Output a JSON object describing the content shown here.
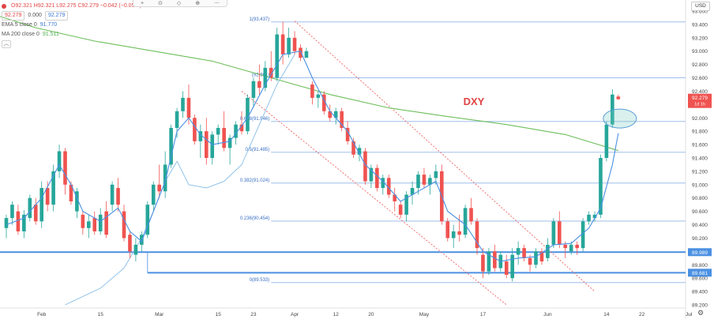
{
  "legend": {
    "ohlc_text": "O92.321  H92.321  L92.275  C92.279  −0.042  (−0.05%)",
    "bid": "92.279",
    "spread": "0.000",
    "ask": "92.279",
    "ema_label": "EMA 5 close 0",
    "ema_value": "91.770",
    "ma_label": "MA 200 close 0",
    "ma_value": "91.511",
    "collapse_symbol": "︿"
  },
  "toolbar": {
    "items": [
      "+",
      "⊙",
      "◇",
      "⊕",
      "⋯"
    ]
  },
  "currency_button": "USD",
  "chart_data": {
    "type": "candlestick",
    "title": "DXY",
    "ylim": [
      89.2,
      93.6
    ],
    "y_ticks": [
      "93.600",
      "93.400",
      "93.200",
      "93.000",
      "92.800",
      "92.600",
      "92.400",
      "92.200",
      "92.000",
      "91.800",
      "91.600",
      "91.400",
      "91.200",
      "91.000",
      "90.800",
      "90.600",
      "90.400",
      "90.200",
      "90.000",
      "89.800",
      "89.600",
      "89.400",
      "89.200"
    ],
    "x_ticks": [
      {
        "label": "Feb",
        "i": 6
      },
      {
        "label": "15",
        "i": 16
      },
      {
        "label": "Mar",
        "i": 26
      },
      {
        "label": "15",
        "i": 36
      },
      {
        "label": "23",
        "i": 42
      },
      {
        "label": "Apr",
        "i": 49
      },
      {
        "label": "12",
        "i": 56
      },
      {
        "label": "20",
        "i": 62
      },
      {
        "label": "May",
        "i": 71
      },
      {
        "label": "17",
        "i": 81
      },
      {
        "label": "Jun",
        "i": 92
      },
      {
        "label": "14",
        "i": 102
      },
      {
        "label": "22",
        "i": 108
      },
      {
        "label": "Jul",
        "i": 116
      }
    ],
    "candles": [
      [
        90.35,
        90.55,
        90.2,
        90.5
      ],
      [
        90.5,
        90.75,
        90.4,
        90.7
      ],
      [
        90.6,
        90.7,
        90.25,
        90.3
      ],
      [
        90.3,
        90.62,
        90.2,
        90.55
      ],
      [
        90.5,
        90.85,
        90.45,
        90.8
      ],
      [
        90.7,
        90.8,
        90.4,
        90.45
      ],
      [
        90.45,
        91.05,
        90.35,
        90.95
      ],
      [
        90.95,
        91.05,
        90.6,
        90.7
      ],
      [
        90.7,
        91.3,
        90.6,
        91.2
      ],
      [
        91.2,
        91.6,
        91.1,
        91.5
      ],
      [
        91.5,
        91.55,
        90.85,
        91.0
      ],
      [
        91.0,
        91.05,
        90.7,
        90.75
      ],
      [
        90.6,
        90.95,
        90.5,
        90.9
      ],
      [
        90.55,
        90.6,
        90.25,
        90.35
      ],
      [
        90.35,
        90.55,
        90.2,
        90.45
      ],
      [
        90.5,
        90.6,
        90.25,
        90.3
      ],
      [
        90.3,
        90.65,
        90.25,
        90.55
      ],
      [
        90.6,
        90.75,
        90.2,
        90.25
      ],
      [
        90.7,
        91.05,
        90.6,
        91.0
      ],
      [
        90.95,
        91.1,
        90.6,
        90.7
      ],
      [
        90.6,
        90.7,
        90.15,
        90.2
      ],
      [
        90.25,
        90.3,
        89.9,
        90.0
      ],
      [
        89.95,
        90.2,
        89.85,
        90.1
      ],
      [
        90.1,
        90.3,
        90.0,
        90.25
      ],
      [
        90.25,
        90.75,
        90.2,
        90.7
      ],
      [
        90.7,
        91.05,
        90.6,
        91.0
      ],
      [
        91.0,
        91.3,
        90.8,
        90.9
      ],
      [
        90.9,
        91.5,
        90.8,
        91.3
      ],
      [
        91.3,
        91.9,
        91.25,
        91.85
      ],
      [
        91.85,
        92.15,
        91.7,
        92.1
      ],
      [
        92.1,
        92.4,
        92.0,
        92.3
      ],
      [
        92.3,
        92.5,
        91.9,
        92.0
      ],
      [
        92.0,
        92.05,
        91.6,
        91.65
      ],
      [
        91.65,
        91.9,
        91.4,
        91.8
      ],
      [
        91.8,
        92.0,
        91.3,
        91.4
      ],
      [
        91.4,
        91.8,
        91.3,
        91.75
      ],
      [
        91.75,
        91.9,
        91.6,
        91.85
      ],
      [
        91.85,
        92.1,
        91.5,
        91.55
      ],
      [
        91.55,
        91.75,
        91.3,
        91.7
      ],
      [
        91.7,
        91.95,
        91.6,
        91.9
      ],
      [
        91.9,
        92.1,
        91.75,
        91.8
      ],
      [
        91.8,
        92.35,
        91.75,
        92.3
      ],
      [
        92.3,
        92.6,
        92.15,
        92.55
      ],
      [
        92.55,
        92.8,
        92.35,
        92.45
      ],
      [
        92.45,
        92.85,
        92.4,
        92.75
      ],
      [
        92.75,
        93.0,
        92.55,
        92.6
      ],
      [
        92.6,
        93.35,
        92.55,
        93.25
      ],
      [
        93.25,
        93.44,
        92.8,
        92.95
      ],
      [
        92.95,
        93.35,
        92.9,
        93.2
      ],
      [
        93.2,
        93.3,
        92.95,
        93.0
      ],
      [
        93.05,
        93.1,
        92.85,
        92.9
      ],
      [
        92.9,
        93.05,
        92.9,
        93.0
      ],
      [
        92.5,
        92.55,
        92.2,
        92.3
      ],
      [
        92.3,
        92.4,
        92.15,
        92.35
      ],
      [
        92.35,
        92.4,
        92.05,
        92.1
      ],
      [
        92.1,
        92.2,
        91.95,
        92.0
      ],
      [
        92.0,
        92.15,
        91.9,
        92.1
      ],
      [
        92.1,
        92.15,
        91.8,
        91.85
      ],
      [
        91.85,
        91.95,
        91.6,
        91.65
      ],
      [
        91.65,
        91.7,
        91.4,
        91.45
      ],
      [
        91.45,
        91.6,
        91.35,
        91.55
      ],
      [
        91.5,
        91.55,
        91.0,
        91.05
      ],
      [
        91.05,
        91.3,
        90.95,
        91.25
      ],
      [
        91.25,
        91.3,
        90.9,
        90.95
      ],
      [
        90.95,
        91.15,
        90.85,
        91.1
      ],
      [
        91.1,
        91.15,
        90.8,
        90.85
      ],
      [
        90.85,
        90.95,
        90.6,
        90.75
      ],
      [
        90.7,
        90.75,
        90.5,
        90.55
      ],
      [
        90.55,
        90.9,
        90.45,
        90.85
      ],
      [
        90.85,
        91.05,
        90.7,
        90.95
      ],
      [
        90.95,
        91.2,
        90.85,
        91.15
      ],
      [
        91.15,
        91.25,
        90.95,
        91.0
      ],
      [
        91.0,
        91.15,
        90.85,
        91.1
      ],
      [
        91.1,
        91.3,
        91.0,
        91.2
      ],
      [
        91.2,
        91.3,
        90.4,
        90.45
      ],
      [
        90.45,
        90.5,
        90.15,
        90.2
      ],
      [
        90.2,
        90.4,
        90.05,
        90.3
      ],
      [
        90.3,
        90.55,
        90.15,
        90.25
      ],
      [
        90.25,
        90.7,
        90.2,
        90.65
      ],
      [
        90.65,
        90.8,
        90.4,
        90.45
      ],
      [
        90.45,
        90.5,
        89.95,
        90.05
      ],
      [
        89.95,
        90.05,
        89.6,
        89.7
      ],
      [
        89.7,
        90.05,
        89.65,
        90.0
      ],
      [
        90.0,
        90.1,
        89.7,
        89.75
      ],
      [
        89.75,
        90.0,
        89.7,
        89.95
      ],
      [
        89.85,
        89.95,
        89.6,
        89.65
      ],
      [
        89.6,
        90.05,
        89.55,
        89.95
      ],
      [
        89.95,
        90.15,
        89.8,
        90.05
      ],
      [
        90.05,
        90.1,
        89.85,
        89.9
      ],
      [
        89.9,
        89.95,
        89.7,
        89.8
      ],
      [
        89.8,
        90.05,
        89.75,
        90.0
      ],
      [
        90.0,
        90.05,
        89.8,
        89.85
      ],
      [
        89.9,
        90.2,
        89.85,
        90.1
      ],
      [
        90.1,
        90.5,
        90.05,
        90.45
      ],
      [
        90.45,
        90.6,
        90.05,
        90.1
      ],
      [
        90.1,
        90.15,
        89.9,
        90.05
      ],
      [
        90.0,
        90.15,
        89.95,
        90.1
      ],
      [
        90.1,
        90.15,
        89.95,
        90.05
      ],
      [
        90.05,
        90.5,
        90.0,
        90.45
      ],
      [
        90.45,
        90.6,
        90.4,
        90.55
      ],
      [
        90.5,
        90.6,
        90.45,
        90.55
      ],
      [
        90.55,
        91.45,
        90.5,
        91.4
      ],
      [
        91.4,
        91.95,
        91.35,
        91.9
      ],
      [
        91.9,
        92.43,
        91.85,
        92.35
      ],
      [
        92.32,
        92.35,
        92.27,
        92.28
      ]
    ],
    "ema5": [
      [
        0,
        90.4
      ],
      [
        3,
        90.5
      ],
      [
        6,
        90.8
      ],
      [
        9,
        91.3
      ],
      [
        11,
        91.0
      ],
      [
        13,
        90.6
      ],
      [
        16,
        90.45
      ],
      [
        19,
        90.65
      ],
      [
        21,
        90.3
      ],
      [
        23,
        90.15
      ],
      [
        25,
        90.6
      ],
      [
        27,
        91.05
      ],
      [
        29,
        91.8
      ],
      [
        31,
        92.0
      ],
      [
        33,
        91.75
      ],
      [
        35,
        91.6
      ],
      [
        38,
        91.65
      ],
      [
        41,
        92.0
      ],
      [
        44,
        92.5
      ],
      [
        47,
        92.95
      ],
      [
        50,
        93.0
      ],
      [
        52,
        92.6
      ],
      [
        55,
        92.1
      ],
      [
        58,
        91.8
      ],
      [
        61,
        91.3
      ],
      [
        64,
        91.05
      ],
      [
        67,
        90.75
      ],
      [
        70,
        90.9
      ],
      [
        73,
        91.05
      ],
      [
        75,
        90.6
      ],
      [
        78,
        90.4
      ],
      [
        81,
        90.0
      ],
      [
        84,
        89.85
      ],
      [
        87,
        89.9
      ],
      [
        90,
        89.92
      ],
      [
        93,
        90.1
      ],
      [
        96,
        90.12
      ],
      [
        99,
        90.35
      ],
      [
        101,
        90.65
      ],
      [
        103,
        91.3
      ],
      [
        104,
        91.77
      ]
    ],
    "ma200": [
      [
        -4,
        93.6
      ],
      [
        5,
        93.35
      ],
      [
        15,
        93.15
      ],
      [
        25,
        93.0
      ],
      [
        35,
        92.85
      ],
      [
        45,
        92.6
      ],
      [
        55,
        92.35
      ],
      [
        65,
        92.15
      ],
      [
        75,
        92.02
      ],
      [
        85,
        91.9
      ],
      [
        95,
        91.75
      ],
      [
        104,
        91.51
      ]
    ],
    "bb_lower": [
      [
        10,
        89.2
      ],
      [
        16,
        89.45
      ],
      [
        20,
        89.75
      ],
      [
        23,
        90.2
      ],
      [
        25,
        90.6
      ],
      [
        27,
        91.05
      ],
      [
        29,
        91.35
      ]
    ],
    "bb_upper": [
      [
        29,
        91.35
      ],
      [
        31,
        91.0
      ],
      [
        34,
        90.95
      ],
      [
        37,
        91.05
      ],
      [
        40,
        91.3
      ],
      [
        43,
        91.9
      ],
      [
        46,
        92.5
      ],
      [
        49,
        92.95
      ]
    ],
    "fib_levels": [
      {
        "label": "1(93.437)",
        "value": 93.437
      },
      {
        "label": "(92.601)",
        "value": 92.601
      },
      {
        "label": "0.618(91.946)",
        "value": 91.946
      },
      {
        "label": "0.5(91.485)",
        "value": 91.485
      },
      {
        "label": "0.382(91.024)",
        "value": 91.024
      },
      {
        "label": "0.236(90.454)",
        "value": 90.454
      },
      {
        "label": "0(89.533)",
        "value": 89.533
      }
    ],
    "support_levels": [
      {
        "value": 89.989,
        "label": "89.989"
      },
      {
        "value": 89.681,
        "label": "89.681"
      }
    ],
    "channel_upper": [
      [
        49,
        93.45
      ],
      [
        100,
        89.4
      ]
    ],
    "channel_lower": [
      [
        40,
        92.4
      ],
      [
        85,
        89.2
      ]
    ],
    "last_price": {
      "value": 92.279,
      "label": "92.279",
      "sub": "1d 1h"
    },
    "colors": {
      "up": "#26a69a",
      "down": "#ef5350",
      "ema": "#4a90e2",
      "ma": "#6cbf5a",
      "fib": "#90b4e8",
      "support": "#4a90e2",
      "channel": "#ef6262",
      "title": "#e04444"
    }
  }
}
